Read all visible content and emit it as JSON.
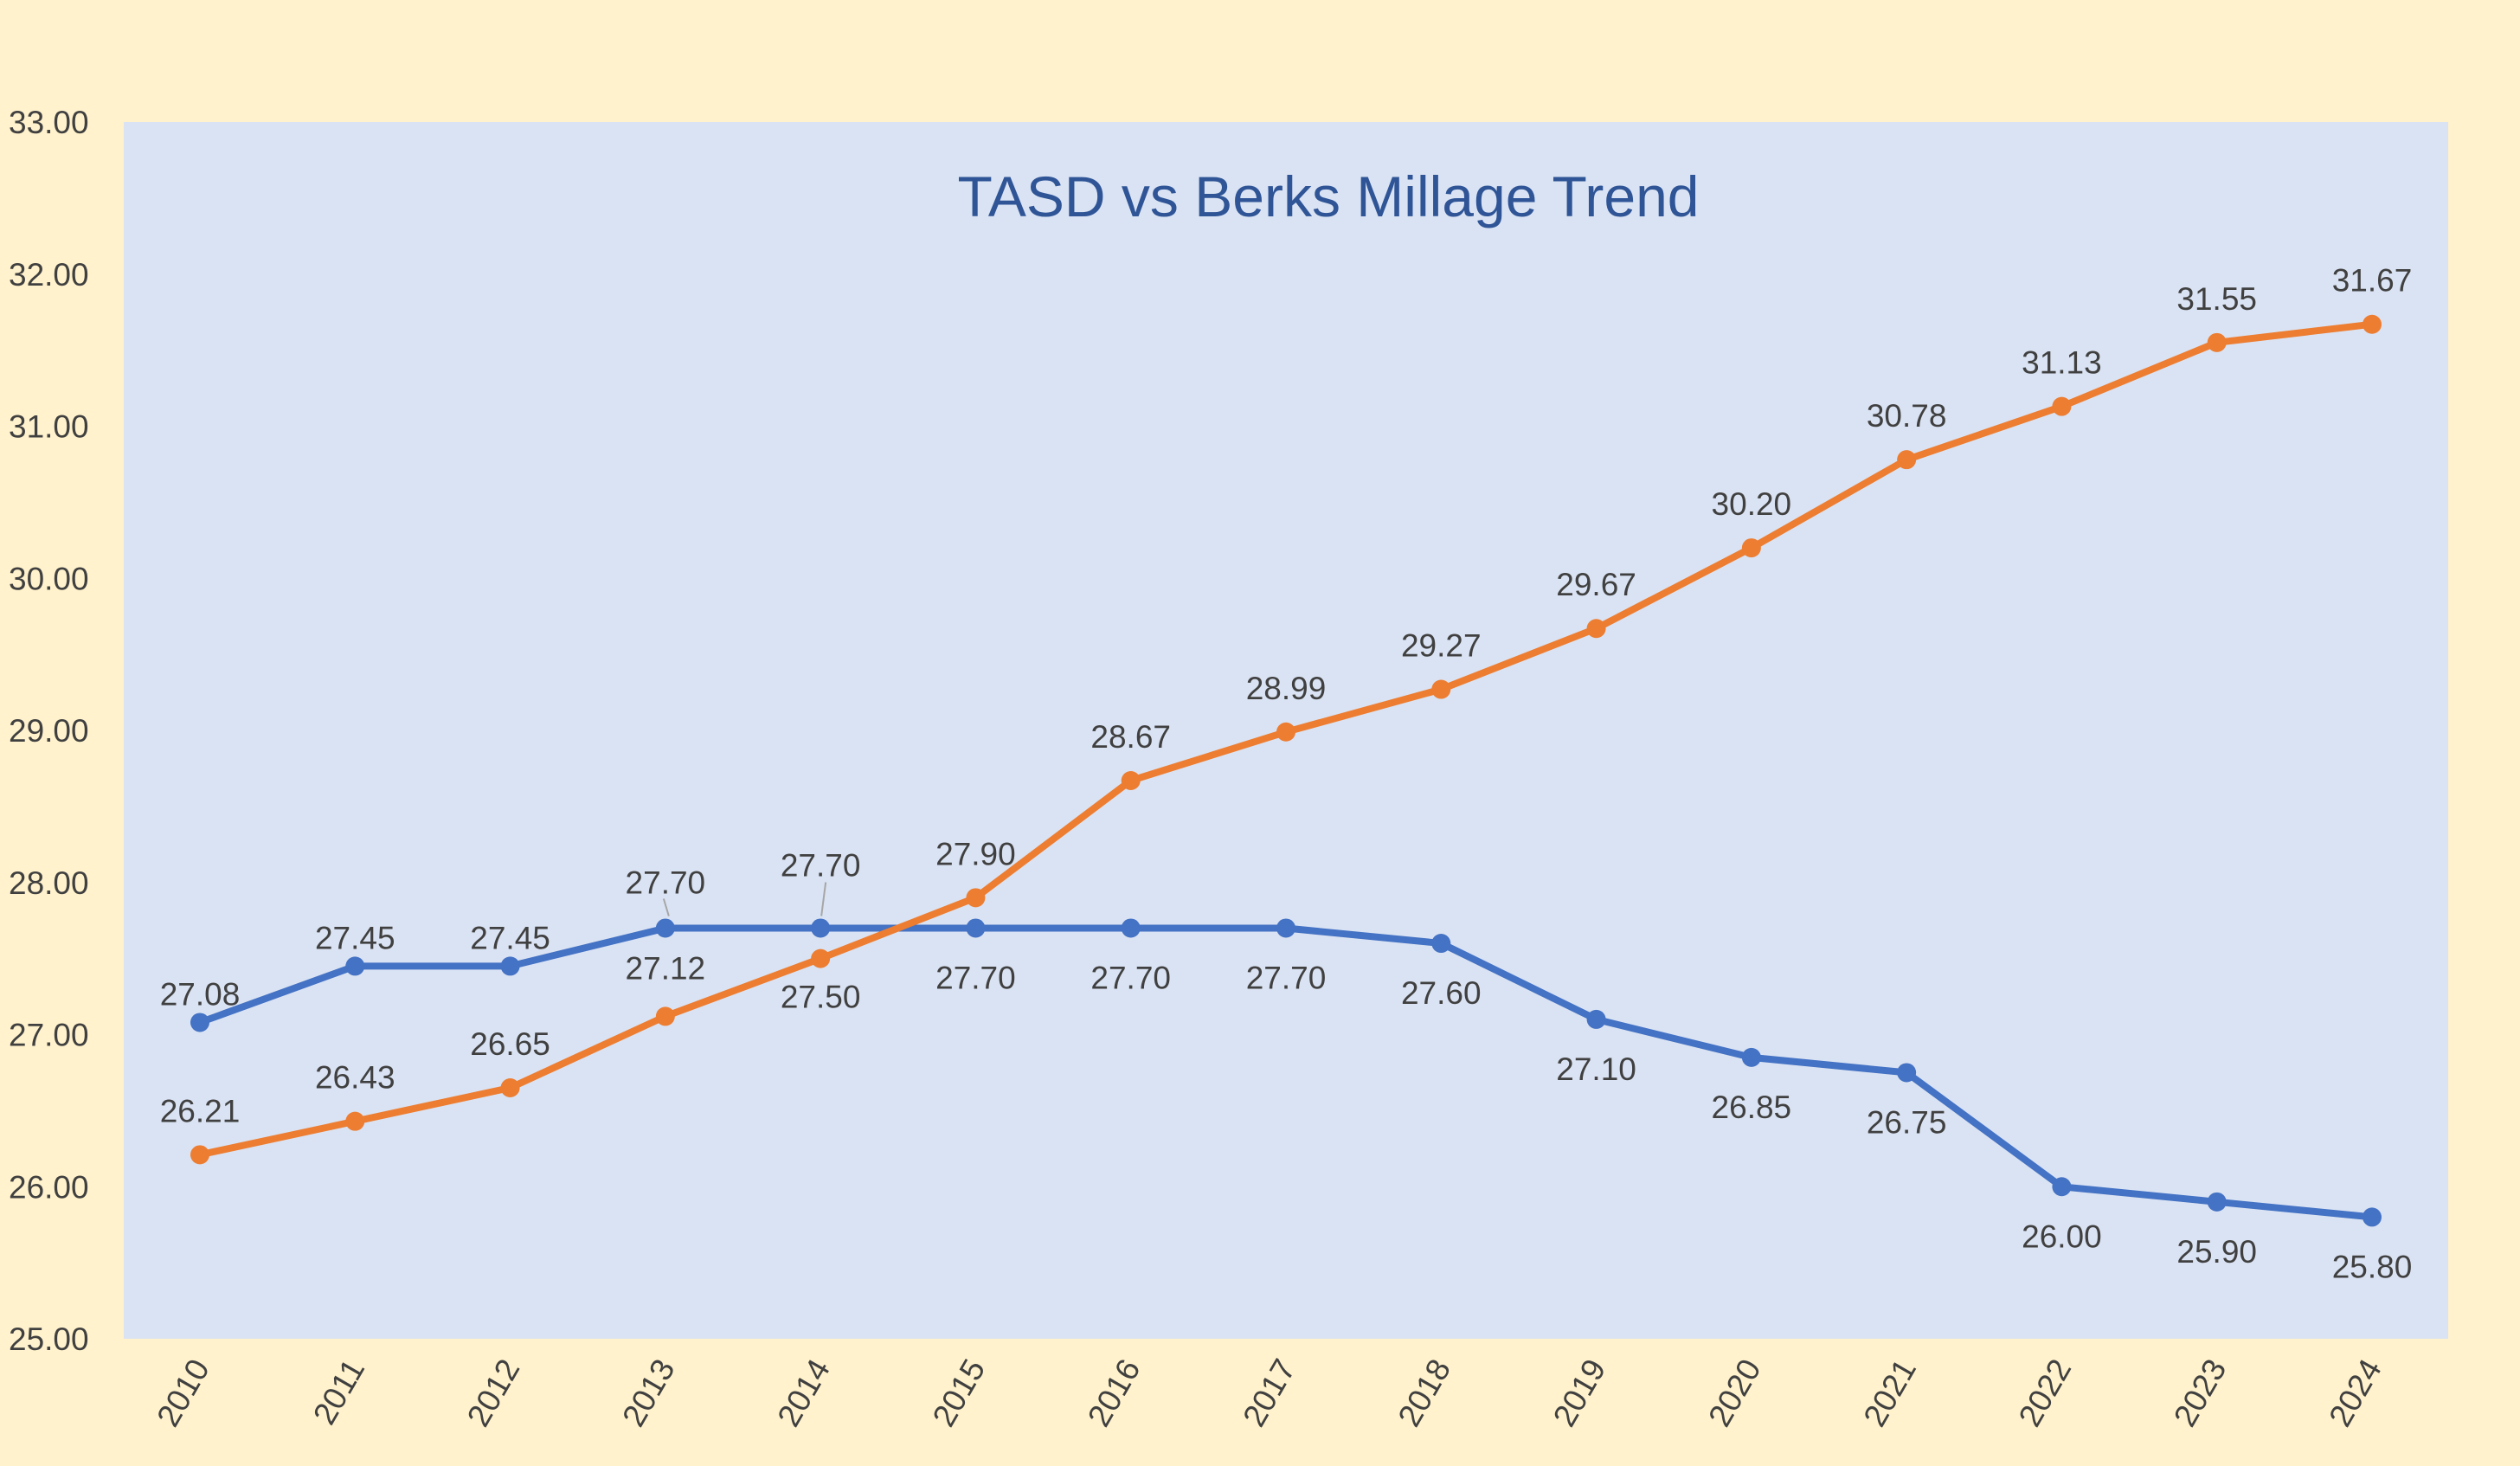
{
  "chart_data": {
    "type": "line",
    "title": "TASD vs Berks Millage Trend",
    "xlabel": "",
    "ylabel": "",
    "categories": [
      "2010",
      "2011",
      "2012",
      "2013",
      "2014",
      "2015",
      "2016",
      "2017",
      "2018",
      "2019",
      "2020",
      "2021",
      "2022",
      "2023",
      "2024"
    ],
    "ylim": [
      25,
      33
    ],
    "y_ticks": [
      "25.00",
      "26.00",
      "27.00",
      "28.00",
      "29.00",
      "30.00",
      "31.00",
      "32.00",
      "33.00"
    ],
    "grid": false,
    "legend": "none",
    "series": [
      {
        "color": "#4472c4",
        "values": [
          27.08,
          27.45,
          27.45,
          27.7,
          27.7,
          27.7,
          27.7,
          27.7,
          27.6,
          27.1,
          26.85,
          26.75,
          26.0,
          25.9,
          25.8
        ],
        "labels": [
          "27.08",
          "27.45",
          "27.45",
          "27.70",
          "27.70",
          "27.70",
          "27.70",
          "27.70",
          "27.60",
          "27.10",
          "26.85",
          "26.75",
          "26.00",
          "25.90",
          "25.80"
        ]
      },
      {
        "color": "#ed7d31",
        "values": [
          26.21,
          26.43,
          26.65,
          27.12,
          27.5,
          27.9,
          28.67,
          28.99,
          29.27,
          29.67,
          30.2,
          30.78,
          31.13,
          31.55,
          31.67
        ],
        "labels": [
          "26.21",
          "26.43",
          "26.65",
          "27.12",
          "27.50",
          "27.90",
          "28.67",
          "28.99",
          "29.27",
          "29.67",
          "30.20",
          "30.78",
          "31.13",
          "31.55",
          "31.67"
        ]
      }
    ],
    "colors": {
      "plot_background": "#dae3f3",
      "page_background": "#fff2cc",
      "title": "#2f5597"
    }
  }
}
